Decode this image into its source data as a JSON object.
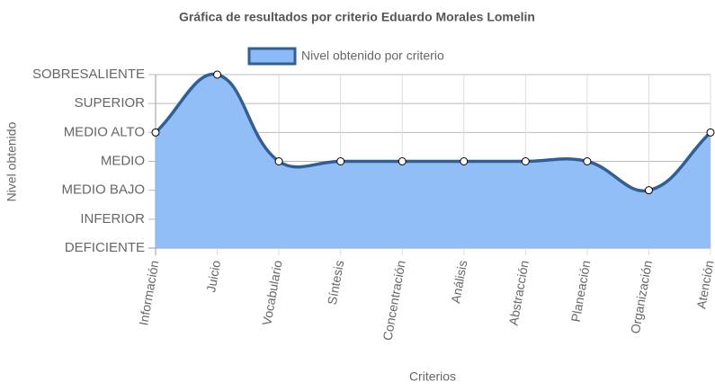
{
  "chart_data": {
    "type": "line",
    "title": "Gráfica de resultados por criterio Eduardo Morales Lomelin",
    "x_label": "Criterios",
    "y_label": "Nivel obtenido",
    "categories": [
      "Información",
      "Juicio",
      "Vocabulario",
      "Síntesis",
      "Concentración",
      "Análisis",
      "Abstracción",
      "Planeación",
      "Organización",
      "Atención"
    ],
    "series": [
      {
        "name": "Nivel obtenido por criterio",
        "color": "#2f5f96",
        "fill": "#8cbaf7",
        "values": [
          4,
          6,
          3,
          3,
          3,
          3,
          3,
          3,
          2,
          4
        ]
      }
    ],
    "ylim": [
      0,
      6
    ],
    "yticks": [
      {
        "value": 0,
        "label": "DEFICIENTE"
      },
      {
        "value": 1,
        "label": "INFERIOR"
      },
      {
        "value": 2,
        "label": "MEDIO BAJO"
      },
      {
        "value": 3,
        "label": "MEDIO"
      },
      {
        "value": 4,
        "label": "MEDIO ALTO"
      },
      {
        "value": 5,
        "label": "SUPERIOR"
      },
      {
        "value": 6,
        "label": "SOBRESALIENTE"
      }
    ],
    "grid": true,
    "legend": "top"
  }
}
